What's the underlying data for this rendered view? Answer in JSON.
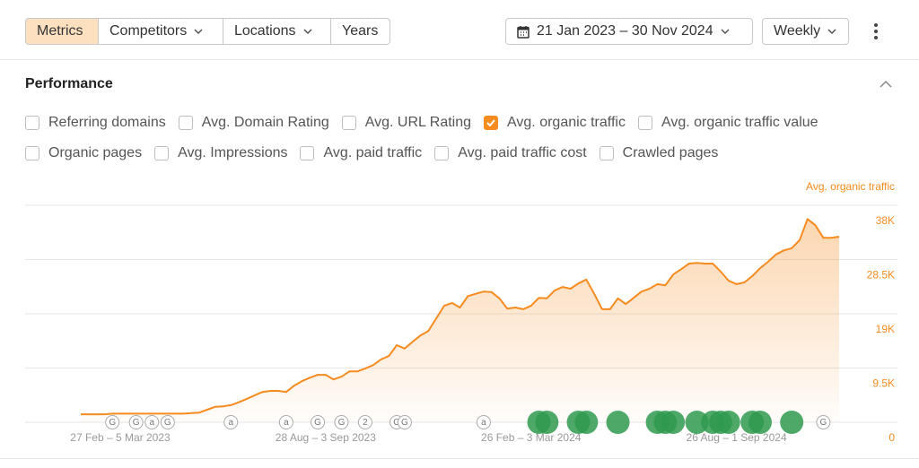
{
  "toolbar": {
    "tabs": [
      "Metrics",
      "Competitors",
      "Locations",
      "Years"
    ],
    "active_tab": 0,
    "date_range": "21 Jan 2023 – 30 Nov 2024",
    "interval": "Weekly"
  },
  "panel": {
    "title": "Performance",
    "metric_rows": [
      [
        {
          "label": "Referring domains",
          "checked": false
        },
        {
          "label": "Avg. Domain Rating",
          "checked": false
        },
        {
          "label": "Avg. URL Rating",
          "checked": false
        },
        {
          "label": "Avg. organic traffic",
          "checked": true
        },
        {
          "label": "Avg. organic traffic value",
          "checked": false
        }
      ],
      [
        {
          "label": "Organic pages",
          "checked": false
        },
        {
          "label": "Avg. Impressions",
          "checked": false
        },
        {
          "label": "Avg. paid traffic",
          "checked": false
        },
        {
          "label": "Avg. paid traffic cost",
          "checked": false
        },
        {
          "label": "Crawled pages",
          "checked": false
        }
      ]
    ]
  },
  "chart_data": {
    "type": "area",
    "categories": [
      null,
      null,
      null,
      null,
      null,
      "27 Feb – 5 Mar 2023",
      null,
      null,
      null,
      null,
      null,
      null,
      null,
      null,
      null,
      null,
      null,
      null,
      null,
      null,
      null,
      null,
      null,
      null,
      null,
      null,
      null,
      null,
      null,
      null,
      null,
      "28 Aug – 3 Sep 2023",
      null,
      null,
      null,
      null,
      null,
      null,
      null,
      null,
      null,
      null,
      null,
      null,
      null,
      null,
      null,
      null,
      null,
      null,
      null,
      null,
      null,
      null,
      null,
      null,
      null,
      "26 Feb – 3 Mar 2024",
      null,
      null,
      null,
      null,
      null,
      null,
      null,
      null,
      null,
      null,
      null,
      null,
      null,
      null,
      null,
      null,
      null,
      null,
      null,
      null,
      null,
      null,
      null,
      null,
      null,
      "26 Aug – 1 Sep 2024",
      null,
      null,
      null,
      null,
      null,
      null,
      null,
      null,
      null,
      null,
      null,
      null,
      null
    ],
    "series": [
      {
        "name": "Avg. organic traffic",
        "color": "#f68b1f",
        "axis": "right",
        "values": [
          1400,
          1400,
          1400,
          1400,
          1500,
          1500,
          1500,
          1500,
          1500,
          1500,
          1500,
          1500,
          1500,
          1500,
          1600,
          1700,
          2200,
          2700,
          2800,
          3000,
          3500,
          4100,
          4700,
          5300,
          5500,
          5500,
          5300,
          6400,
          7200,
          7800,
          8300,
          8300,
          7500,
          8000,
          8900,
          8900,
          9400,
          10000,
          11000,
          11600,
          13500,
          12900,
          14100,
          15200,
          16000,
          18200,
          20400,
          20900,
          20100,
          22100,
          22500,
          22900,
          22800,
          21700,
          19900,
          20100,
          19800,
          20400,
          21800,
          21700,
          23100,
          23700,
          23400,
          24300,
          25000,
          22500,
          19800,
          19800,
          21700,
          20700,
          21800,
          22900,
          23400,
          24200,
          24000,
          25900,
          26800,
          27800,
          27900,
          27800,
          27800,
          26400,
          24800,
          24200,
          24500,
          25600,
          27000,
          28100,
          29400,
          30100,
          30500,
          31900,
          35600,
          34500,
          32300,
          32300,
          32500
        ]
      }
    ],
    "ylim": [
      0,
      38000
    ],
    "yticks": [
      0,
      {
        "value": 9500,
        "label": "9.5K"
      },
      {
        "value": 19000,
        "label": "19K"
      },
      {
        "value": 28500,
        "label": "28.5K"
      },
      {
        "value": 38000,
        "label": "38K"
      }
    ],
    "grid": true,
    "markers": [
      {
        "week": 4,
        "label": "G"
      },
      {
        "week": 7,
        "label": "G"
      },
      {
        "week": 9,
        "label": "a"
      },
      {
        "week": 11,
        "label": "G"
      },
      {
        "week": 19,
        "label": "a"
      },
      {
        "week": 26,
        "label": "a"
      },
      {
        "week": 30,
        "label": "G"
      },
      {
        "week": 33,
        "label": "G"
      },
      {
        "week": 36,
        "label": "2"
      },
      {
        "week": 40,
        "label": "G"
      },
      {
        "week": 41,
        "label": "G"
      },
      {
        "week": 51,
        "label": "a"
      },
      {
        "week": 94,
        "label": "G"
      }
    ],
    "updates": [
      58,
      59,
      63,
      64,
      68,
      73,
      74,
      75,
      78,
      80,
      81,
      82,
      85,
      86,
      90
    ]
  }
}
